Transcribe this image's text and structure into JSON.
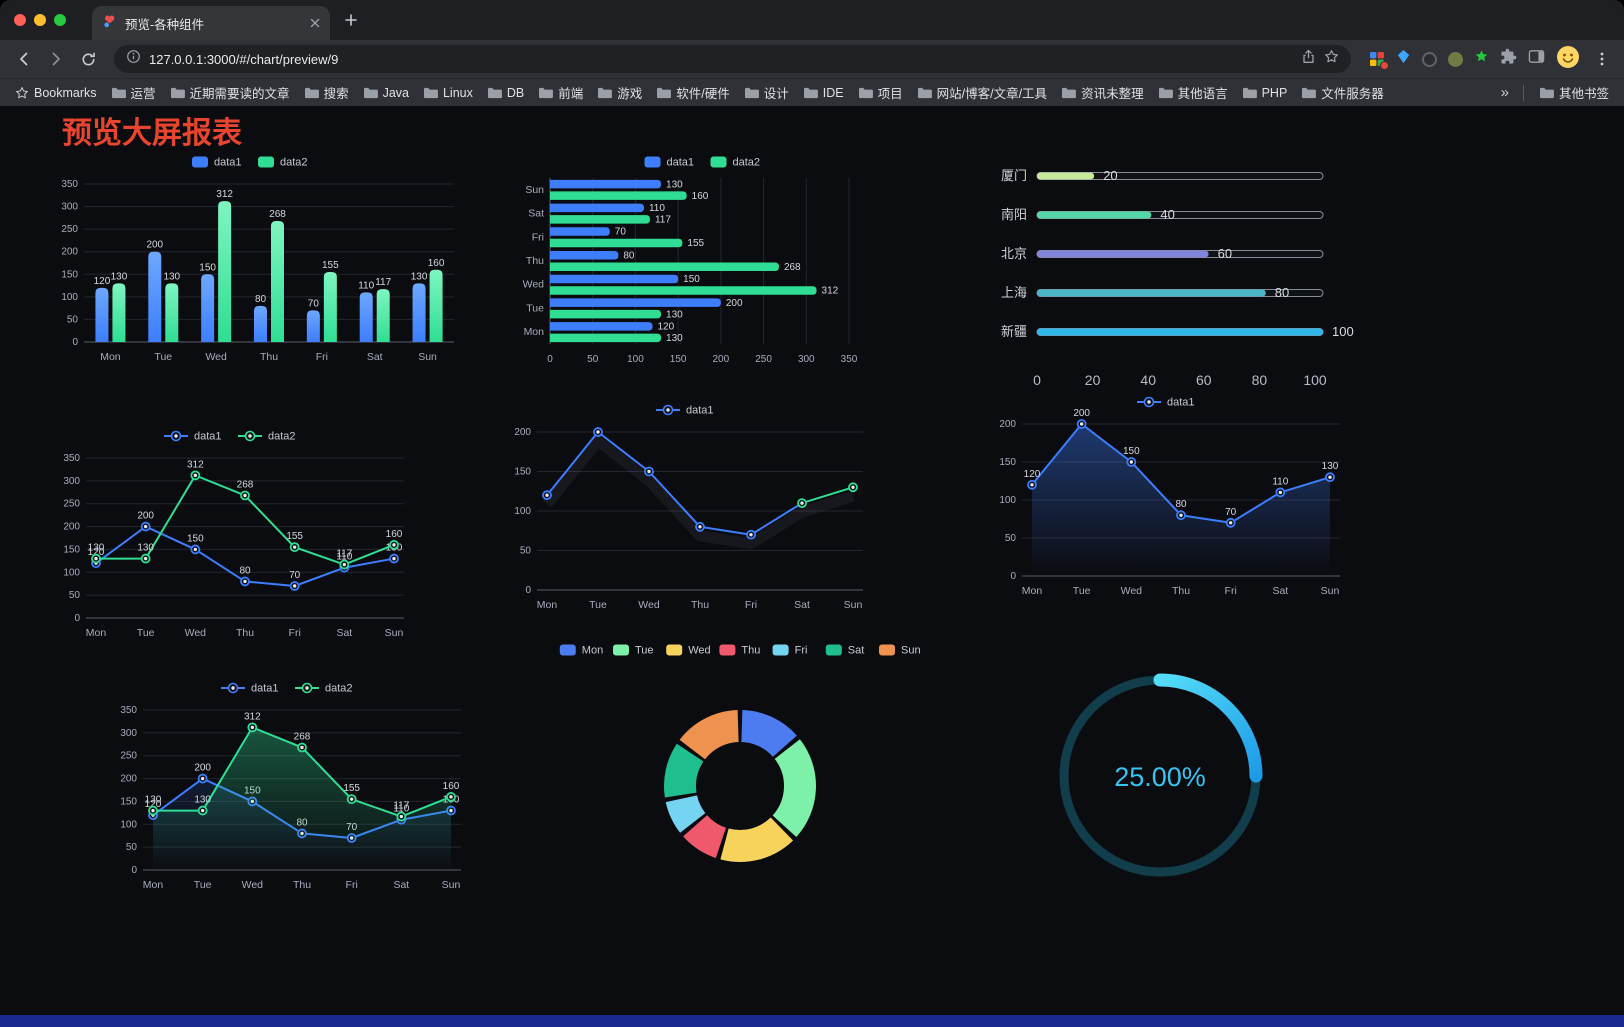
{
  "browser": {
    "tab_title": "预览-各种组件",
    "url": "127.0.0.1:3000/#/chart/preview/9",
    "bookmarks_label": "Bookmarks",
    "bookmarks": [
      "运营",
      "近期需要读的文章",
      "搜索",
      "Java",
      "Linux",
      "DB",
      "前端",
      "游戏",
      "软件/硬件",
      "设计",
      "IDE",
      "项目",
      "网站/博客/文章/工具",
      "资讯未整理",
      "其他语言",
      "PHP",
      "文件服务器"
    ],
    "overflow": "»",
    "other_bookmarks": "其他书签"
  },
  "page": {
    "title": "预览大屏报表"
  },
  "chart_data": [
    {
      "type": "bar",
      "name": "grouped-bar",
      "categories": [
        "Mon",
        "Tue",
        "Wed",
        "Thu",
        "Fri",
        "Sat",
        "Sun"
      ],
      "series": [
        {
          "name": "data1",
          "color": "#3D7EFF",
          "color_top": "#6CA8FF",
          "values": [
            120,
            200,
            150,
            80,
            70,
            110,
            130
          ]
        },
        {
          "name": "data2",
          "color": "#2FDE94",
          "color_top": "#7FF5C2",
          "values": [
            130,
            130,
            312,
            268,
            155,
            117,
            160
          ]
        }
      ],
      "ylim": [
        0,
        350
      ],
      "ytick": 50,
      "value_labels": true
    },
    {
      "type": "hbar",
      "name": "horizontal-bar",
      "categories": [
        "Mon",
        "Tue",
        "Wed",
        "Thu",
        "Fri",
        "Sat",
        "Sun"
      ],
      "series": [
        {
          "name": "data1",
          "color": "#3D7EFF",
          "values": [
            120,
            200,
            150,
            80,
            70,
            110,
            130
          ]
        },
        {
          "name": "data2",
          "color": "#2FDE94",
          "values": [
            130,
            130,
            312,
            268,
            155,
            117,
            160
          ]
        }
      ],
      "xlim": [
        0,
        350
      ],
      "xtick": 50,
      "value_labels": true
    },
    {
      "type": "progress",
      "name": "city-progress",
      "items": [
        {
          "label": "厦门",
          "value": 20,
          "color": "#C9E99A"
        },
        {
          "label": "南阳",
          "value": 40,
          "color": "#55D6A9"
        },
        {
          "label": "北京",
          "value": 60,
          "color": "#8184DB"
        },
        {
          "label": "上海",
          "value": 80,
          "color": "#49B6C8"
        },
        {
          "label": "新疆",
          "value": 100,
          "color": "#2FB7E9"
        }
      ],
      "axis": [
        0,
        20,
        40,
        60,
        80,
        100
      ],
      "max": 100
    },
    {
      "type": "line",
      "name": "two-line",
      "categories": [
        "Mon",
        "Tue",
        "Wed",
        "Thu",
        "Fri",
        "Sat",
        "Sun"
      ],
      "series": [
        {
          "name": "data1",
          "color": "#3D7EFF",
          "values": [
            120,
            200,
            150,
            80,
            70,
            110,
            130
          ]
        },
        {
          "name": "data2",
          "color": "#2FDE94",
          "values": [
            130,
            130,
            312,
            268,
            155,
            117,
            160
          ]
        }
      ],
      "ylim": [
        0,
        350
      ],
      "ytick": 50,
      "value_labels": true
    },
    {
      "type": "line",
      "name": "single-line",
      "categories": [
        "Mon",
        "Tue",
        "Wed",
        "Thu",
        "Fri",
        "Sat",
        "Sun"
      ],
      "series": [
        {
          "name": "data1",
          "color": "#3D7EFF",
          "end_color": "#2FDE94",
          "values": [
            120,
            200,
            150,
            80,
            70,
            110,
            130
          ]
        }
      ],
      "ylim": [
        0,
        200
      ],
      "ytick": 50,
      "value_labels": false,
      "shadow": true
    },
    {
      "type": "line",
      "name": "single-area-line",
      "categories": [
        "Mon",
        "Tue",
        "Wed",
        "Thu",
        "Fri",
        "Sat",
        "Sun"
      ],
      "series": [
        {
          "name": "data1",
          "color": "#3D7EFF",
          "area": true,
          "area_opacity": 0.4,
          "values": [
            120,
            200,
            150,
            80,
            70,
            110,
            130
          ]
        }
      ],
      "ylim": [
        0,
        200
      ],
      "ytick": 50,
      "value_labels": true
    },
    {
      "type": "line",
      "name": "two-line-area",
      "categories": [
        "Mon",
        "Tue",
        "Wed",
        "Thu",
        "Fri",
        "Sat",
        "Sun"
      ],
      "series": [
        {
          "name": "data1",
          "color": "#3D7EFF",
          "area": true,
          "area_opacity": 0.15,
          "values": [
            120,
            200,
            150,
            80,
            70,
            110,
            130
          ]
        },
        {
          "name": "data2",
          "color": "#2FDE94",
          "area": true,
          "area_opacity": 0.35,
          "values": [
            130,
            130,
            312,
            268,
            155,
            117,
            160
          ]
        }
      ],
      "ylim": [
        0,
        350
      ],
      "ytick": 50,
      "value_labels": true
    },
    {
      "type": "pie",
      "name": "weekday-donut",
      "items": [
        {
          "name": "Mon",
          "value": 120,
          "color": "#4D7BF0"
        },
        {
          "name": "Tue",
          "value": 200,
          "color": "#7DF0AA"
        },
        {
          "name": "Wed",
          "value": 150,
          "color": "#F8D35C"
        },
        {
          "name": "Thu",
          "value": 80,
          "color": "#F0596C"
        },
        {
          "name": "Fri",
          "value": 70,
          "color": "#74D4F2"
        },
        {
          "name": "Sat",
          "value": 110,
          "color": "#1FBE8F"
        },
        {
          "name": "Sun",
          "value": 130,
          "color": "#F0924F"
        }
      ]
    },
    {
      "type": "gauge",
      "name": "percent-gauge",
      "value": 25,
      "display": "25.00%",
      "color_start": "#54DDF8",
      "color_end": "#1E9BE8",
      "track_color": "#123d4b",
      "text_color": "#35C5F2"
    }
  ]
}
